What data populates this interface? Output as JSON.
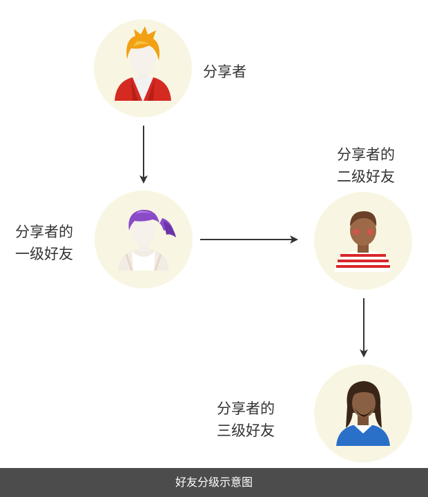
{
  "nodes": {
    "sharer": {
      "label_line1": "分享者"
    },
    "first_level": {
      "label_line1": "分享者的",
      "label_line2": "一级好友"
    },
    "second_level": {
      "label_line1": "分享者的",
      "label_line2": "二级好友"
    },
    "third_level": {
      "label_line1": "分享者的",
      "label_line2": "三级好友"
    }
  },
  "footer": {
    "caption": "好友分级示意图"
  },
  "colors": {
    "node_background": "#f8f6e2",
    "arrow": "#333333",
    "footer_background": "#4c4c4c",
    "footer_text": "#ffffff"
  },
  "icons": {
    "sharer": "avatar-blond-red-jacket-icon",
    "first_level": "avatar-purple-ponytail-icon",
    "second_level": "avatar-striped-shirt-icon",
    "third_level": "avatar-long-hair-blue-shirt-icon"
  }
}
